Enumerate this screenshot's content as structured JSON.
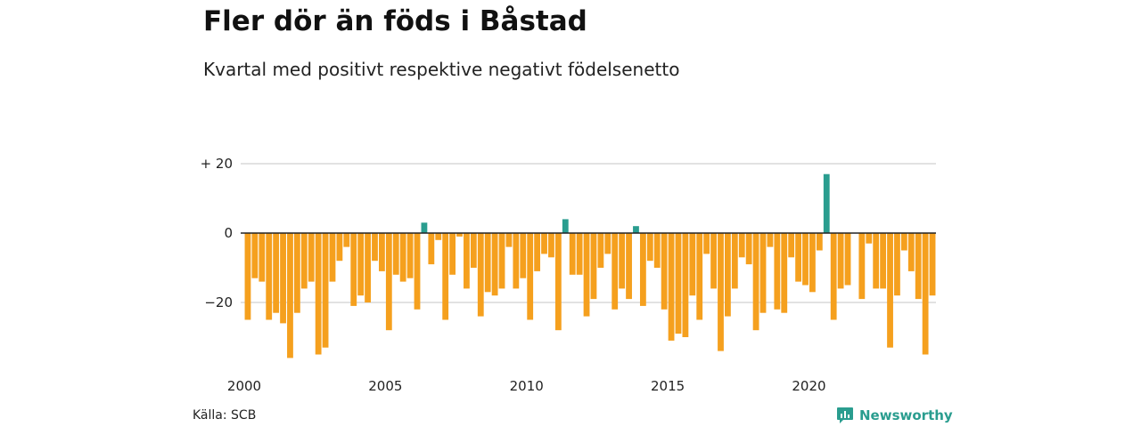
{
  "title": "Fler dör än föds i Båstad",
  "subtitle": "Kvartal med positivt respektive negativt födelsenetto",
  "source": "Källa: SCB",
  "brand": "Newsworthy",
  "colors": {
    "positive": "#2a9d8f",
    "negative": "#f5a01e",
    "grid": "#d9d9d9",
    "zero": "#222222"
  },
  "chart_data": {
    "type": "bar",
    "title": "Fler dör än föds i Båstad",
    "subtitle": "Kvartal med positivt respektive negativt födelsenetto",
    "xlabel": "",
    "ylabel": "",
    "ylim": [
      -36,
      21
    ],
    "yticks": [
      20,
      0,
      -20
    ],
    "ytick_labels": [
      "+ 20",
      "0",
      "−20"
    ],
    "xtick_labels": [
      "2000",
      "2005",
      "2010",
      "2015",
      "2020"
    ],
    "xtick_positions": [
      2000,
      2005,
      2010,
      2015,
      2020
    ],
    "x_start": 2000,
    "periods_per_year": 4,
    "grid": true,
    "values": [
      -25,
      -13,
      -14,
      -25,
      -23,
      -26,
      -36,
      -23,
      -16,
      -14,
      -35,
      -33,
      -14,
      -8,
      -4,
      -21,
      -18,
      -20,
      -8,
      -11,
      -28,
      -12,
      -14,
      -13,
      -22,
      3,
      -9,
      -2,
      -25,
      -12,
      -1,
      -16,
      -10,
      -24,
      -17,
      -18,
      -16,
      -4,
      -16,
      -13,
      -25,
      -11,
      -6,
      -7,
      -28,
      4,
      -12,
      -12,
      -24,
      -19,
      -10,
      -6,
      -22,
      -16,
      -19,
      2,
      -21,
      -8,
      -10,
      -22,
      -31,
      -29,
      -30,
      -18,
      -25,
      -6,
      -16,
      -34,
      -24,
      -16,
      -7,
      -9,
      -28,
      -23,
      -4,
      -22,
      -23,
      -7,
      -14,
      -15,
      -17,
      -5,
      17,
      -25,
      -16,
      -15,
      0,
      -19,
      -3,
      -16,
      -16,
      -33,
      -18,
      -5,
      -11,
      -19,
      -35,
      -18
    ]
  }
}
